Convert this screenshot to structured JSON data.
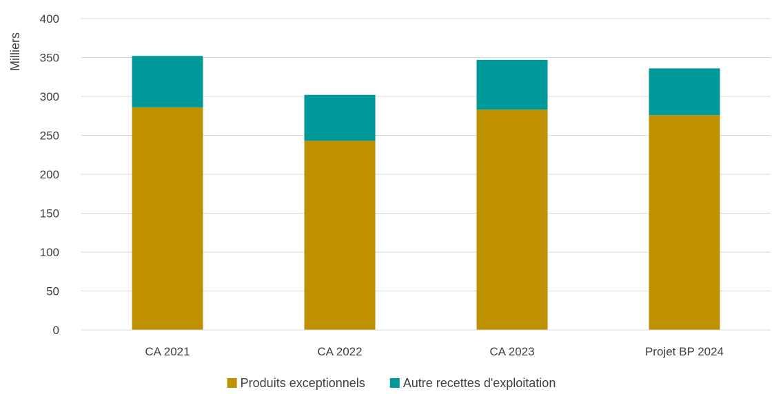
{
  "chart_data": {
    "type": "bar",
    "stacked": true,
    "categories": [
      "CA 2021",
      "CA 2022",
      "CA 2023",
      "Projet BP 2024"
    ],
    "series": [
      {
        "name": "Produits exceptionnels",
        "values": [
          286,
          243,
          283,
          276
        ],
        "color": "#BF9000"
      },
      {
        "name": "Autre recettes d'exploitation",
        "values": [
          66,
          59,
          64,
          60
        ],
        "color": "#009999"
      }
    ],
    "ylabel": "Milliers",
    "ylim": [
      0,
      400
    ],
    "yticks": [
      0,
      50,
      100,
      150,
      200,
      250,
      300,
      350,
      400
    ],
    "grid": true,
    "legend_position": "bottom"
  }
}
